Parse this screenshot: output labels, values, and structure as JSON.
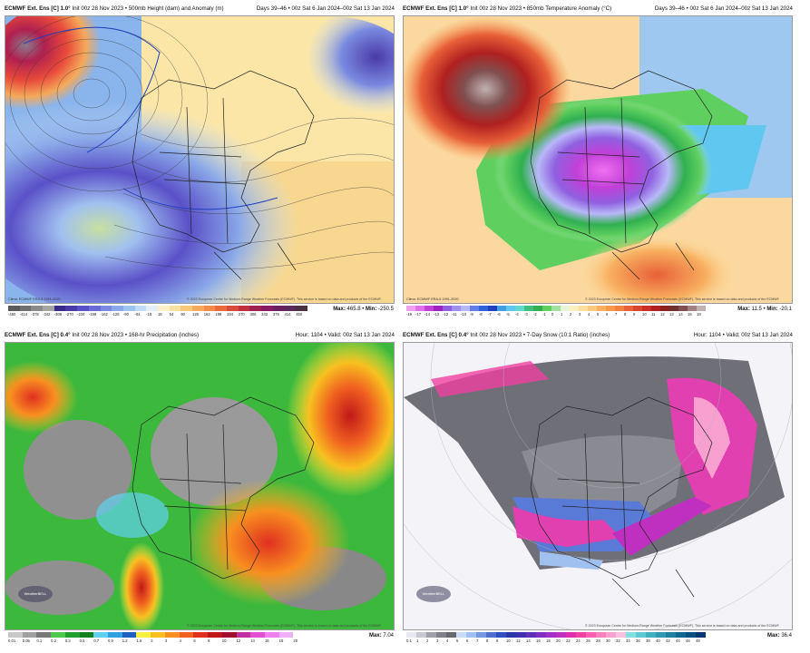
{
  "panels": {
    "p1": {
      "model": "ECMWF Ext. Ens [C] 1.0°",
      "info": "Init 00z 28 Nov 2023 • 500mb Height (dam) and Anomaly (m)",
      "right": "Days 39–46 • 00z Sat 6 Jan 2024–00z Sat 13 Jan 2024",
      "clima": "Clima: ECMWF ERA-5 1991-2020",
      "credit": "© 2023 European Centre for Medium-Range Weather Forecasts (ECMWF). This service is based on data and products of the ECMWF.",
      "max_label": "Max:",
      "max_value": "465.8",
      "min_label": "Min:",
      "min_value": "-250.5",
      "ticks": [
        "-450",
        "-414",
        "-378",
        "-342",
        "-306",
        "-270",
        "-234",
        "-198",
        "-162",
        "-126",
        "-90",
        "-54",
        "-18",
        "18",
        "54",
        "90",
        "126",
        "162",
        "198",
        "234",
        "270",
        "306",
        "342",
        "378",
        "414",
        "450"
      ],
      "colors": [
        "#5a5a5a",
        "#6e6e6e",
        "#8a8a8a",
        "#a5a5a5",
        "#3a2a8a",
        "#4a3aa8",
        "#5a50c8",
        "#6a6ad8",
        "#7a8ae0",
        "#8aa8e8",
        "#a0c4f0",
        "#c0dcf8",
        "#e4eefa",
        "#fbf0c8",
        "#fbe0a0",
        "#f8c878",
        "#f5a95a",
        "#f28a48",
        "#ea6a3c",
        "#d84a3a",
        "#c23040",
        "#a02050",
        "#8a1860",
        "#6a2060",
        "#5a2a5a",
        "#4a3040"
      ]
    },
    "p2": {
      "model": "ECMWF Ext. Ens [C] 1.0°",
      "info": "Init 00z 28 Nov 2023 • 850mb Temperature Anomaly (°C)",
      "right": "Days 39–46 • 00z Sat 6 Jan 2024–00z Sat 13 Jan 2024",
      "clima": "Clima: ECMWF ERA-5 1991-2020",
      "credit": "© 2023 European Centre for Medium-Range Weather Forecasts (ECMWF). This service is based on data and products of the ECMWF.",
      "max_label": "Max:",
      "max_value": "11.5",
      "min_label": "Min:",
      "min_value": "-20.1",
      "ticks": [
        "-19",
        "-17",
        "-14",
        "-13",
        "-12",
        "-11",
        "-10",
        "-9",
        "-8",
        "-7",
        "-6",
        "-5",
        "-4",
        "-3",
        "-2",
        "-1",
        "0",
        "1",
        "2",
        "3",
        "4",
        "5",
        "6",
        "7",
        "8",
        "9",
        "10",
        "11",
        "12",
        "13",
        "14",
        "16",
        "18"
      ],
      "colors": [
        "#f0a0f0",
        "#e070e8",
        "#c040d8",
        "#a020c0",
        "#9060e0",
        "#a090f0",
        "#b8b8f8",
        "#6080e8",
        "#3060d8",
        "#2040c0",
        "#40a0e0",
        "#60c8f0",
        "#60d8d0",
        "#40c080",
        "#30b050",
        "#60d060",
        "#a0e0a0",
        "#e8f4d8",
        "#fff0c0",
        "#fde0a0",
        "#fbc880",
        "#f8b060",
        "#f59848",
        "#f08040",
        "#e86038",
        "#d84830",
        "#c83028",
        "#b02020",
        "#902020",
        "#703030",
        "#805050",
        "#a08080",
        "#c0b0b0"
      ]
    },
    "p3": {
      "model": "ECMWF Ext. Ens [C] 0.4°",
      "info": "Init 00z 28 Nov 2023 • 168-hr Precipitation (inches)",
      "right": "Hour: 1104 • Valid: 00z Sat 13 Jan 2024",
      "credit": "© 2023 European Centre for Medium-Range Weather Forecasts (ECMWF). This service is based on data and products of the ECMWF.",
      "max_label": "Max:",
      "max_value": "7.04",
      "logo": "WeatherBELL",
      "ticks": [
        "0.01",
        "0.05",
        "0.1",
        "0.2",
        "0.3",
        "0.5",
        "0.7",
        "0.9",
        "1.2",
        "1.6",
        "2",
        "3",
        "4",
        "6",
        "8",
        "10",
        "12",
        "14",
        "16",
        "18",
        "20"
      ],
      "colors": [
        "#c8c8c8",
        "#a0a0a0",
        "#787878",
        "#50c850",
        "#20a030",
        "#108020",
        "#60d0f0",
        "#30a0e0",
        "#2060c0",
        "#f8f040",
        "#f8c020",
        "#f89020",
        "#f06020",
        "#e03020",
        "#c01818",
        "#a01030",
        "#c030a0",
        "#e050d0",
        "#f080f0",
        "#f0b0f8",
        "#ffffff"
      ]
    },
    "p4": {
      "model": "ECMWF Ext. Ens [C] 0.4°",
      "info": "Init 00z 28 Nov 2023 • 7-Day Snow (10:1 Ratio) (inches)",
      "right": "Hour: 1104 • Valid: 00z Sat 13 Jan 2024",
      "credit": "© 2023 European Centre for Medium-Range Weather Forecasts (ECMWF). This service is based on data and products of the ECMWF.",
      "max_label": "Max:",
      "max_value": "36.4",
      "logo": "WeatherBELL",
      "ticks": [
        "0.1",
        "1",
        "2",
        "3",
        "4",
        "5",
        "6",
        "7",
        "8",
        "9",
        "10",
        "12",
        "14",
        "16",
        "18",
        "20",
        "22",
        "24",
        "26",
        "28",
        "30",
        "32",
        "34",
        "36",
        "38",
        "40",
        "42",
        "44",
        "46",
        "48"
      ],
      "colors": [
        "#e8e8f0",
        "#c8c8d0",
        "#a0a0a8",
        "#808088",
        "#686870",
        "#c8dcf8",
        "#a0c0f0",
        "#7898e0",
        "#5070d0",
        "#3050c0",
        "#2838a8",
        "#4030b0",
        "#6030b8",
        "#8030c0",
        "#a030c8",
        "#c030c0",
        "#e030b0",
        "#f040a0",
        "#f860b0",
        "#f880c0",
        "#f8a0d0",
        "#f8c0e0",
        "#80e0e0",
        "#60c8d0",
        "#40b0c0",
        "#3098b0",
        "#2080a0",
        "#106890",
        "#085080",
        "#043870"
      ]
    }
  }
}
